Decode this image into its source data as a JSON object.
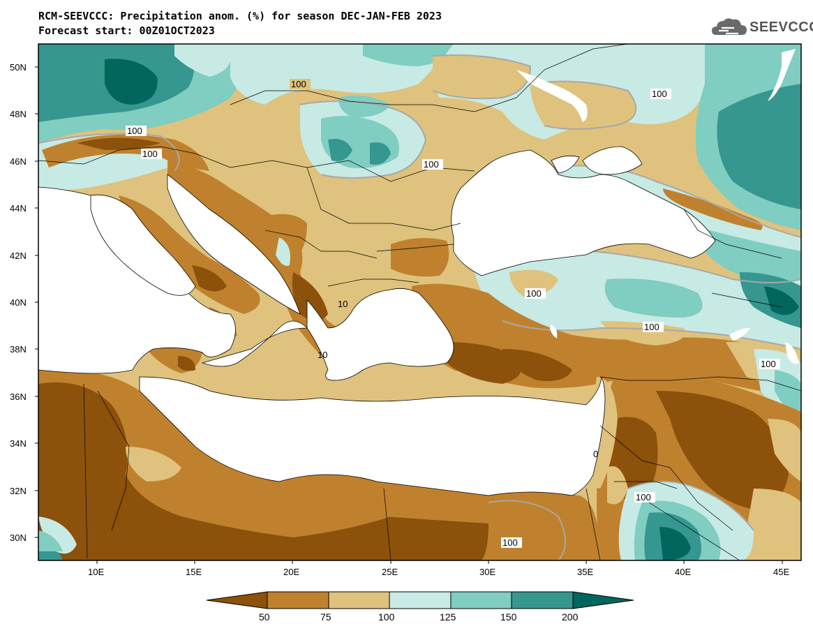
{
  "header": {
    "title": "RCM-SEEVCCC: Precipitation anom. (%) for season DEC-JAN-FEB 2023",
    "subtitle": "Forecast start: 00Z01OCT2023",
    "logo_text": "SEEVCCC"
  },
  "map": {
    "lon_range": [
      7,
      46
    ],
    "lat_range": [
      29,
      51
    ],
    "lat_ticks": [
      "50N",
      "48N",
      "46N",
      "44N",
      "42N",
      "40N",
      "38N",
      "36N",
      "34N",
      "32N",
      "30N"
    ],
    "lon_ticks": [
      "10E",
      "15E",
      "20E",
      "25E",
      "30E",
      "35E",
      "40E",
      "45E"
    ],
    "contour_labels": [
      "100",
      "100",
      "100",
      "100",
      "100",
      "100",
      "100",
      "100",
      "100",
      "100",
      "100",
      "100",
      "10",
      "10",
      "0"
    ],
    "colors": {
      "below_50": "#8c510a",
      "50_75": "#bf812d",
      "75_100": "#dfc27d",
      "100_125": "#c7eae5",
      "125_150": "#80cdc1",
      "150_200": "#35978f",
      "above_200": "#01665e",
      "sea": "#ffffff",
      "contour": "#a8a8a8"
    }
  },
  "colorbar": {
    "labels": [
      "50",
      "75",
      "100",
      "125",
      "150",
      "200"
    ],
    "colors": [
      "#8c510a",
      "#bf812d",
      "#dfc27d",
      "#c7eae5",
      "#80cdc1",
      "#35978f",
      "#01665e"
    ]
  }
}
